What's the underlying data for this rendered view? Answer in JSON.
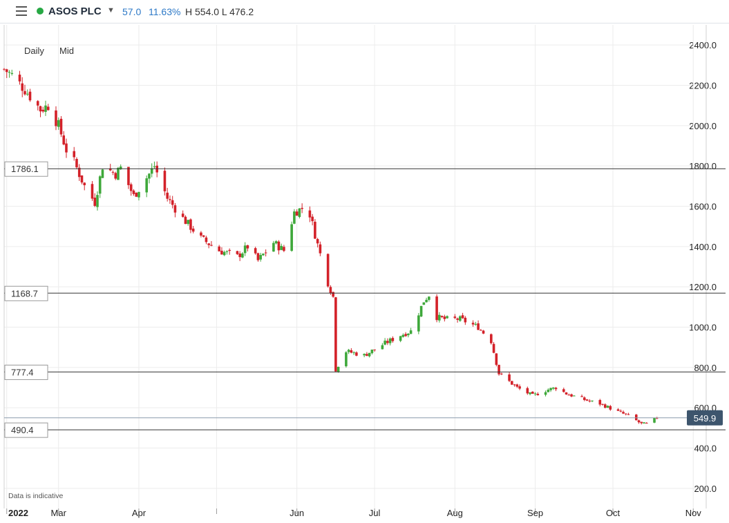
{
  "header": {
    "menu_icon": "hamburger-menu-icon",
    "instrument": "ASOS PLC",
    "change": "57.0",
    "change_pct": "11.63%",
    "high_low": "H 554.0 L 476.2",
    "live_color": "#27a844",
    "change_color": "#2d79c7"
  },
  "toolbar": {
    "period": "Daily",
    "price_type": "Mid"
  },
  "disclaimer": "Data is indicative",
  "colors": {
    "up": "#3ea83a",
    "down": "#d32129",
    "grid": "#ececec",
    "line": "#333333",
    "price_tag": "#3d556d"
  },
  "chart_data": {
    "type": "candlestick",
    "ylim": [
      100,
      2500
    ],
    "y_ticks": [
      200,
      400,
      600,
      800,
      1000,
      1200,
      1400,
      1600,
      1800,
      2000,
      2200,
      2400
    ],
    "y_tick_labels": [
      "200.0",
      "400.0",
      "600.0",
      "800.0",
      "1000.0",
      "1200.0",
      "1400.0",
      "1600.0",
      "1800.0",
      "2000.0",
      "2200.0",
      "2400.0"
    ],
    "x_range": [
      "2022-02-08",
      "2022-11-06"
    ],
    "x_ticks": [
      {
        "date": "2022-02-09",
        "label": "2022"
      },
      {
        "date": "2022-03-01",
        "label": "Mar"
      },
      {
        "date": "2022-04-01",
        "label": "Apr"
      },
      {
        "date": "2022-05-01",
        "label": ""
      },
      {
        "date": "2022-06-01",
        "label": "Jun"
      },
      {
        "date": "2022-07-01",
        "label": "Jul"
      },
      {
        "date": "2022-08-01",
        "label": "Aug"
      },
      {
        "date": "2022-09-01",
        "label": "Sep"
      },
      {
        "date": "2022-10-01",
        "label": "Oct"
      },
      {
        "date": "2022-11-01",
        "label": "Nov"
      }
    ],
    "horizontal_levels": [
      {
        "value": 1786.1,
        "label": "1786.1"
      },
      {
        "value": 1168.7,
        "label": "1168.7"
      },
      {
        "value": 777.4,
        "label": "777.4"
      },
      {
        "value": 490.4,
        "label": "490.4"
      }
    ],
    "last_price": {
      "value": 549.9,
      "label": "549.9"
    },
    "anchors": [
      [
        "2022-02-08",
        2280
      ],
      [
        "2022-02-11",
        2250
      ],
      [
        "2022-02-16",
        2180
      ],
      [
        "2022-02-22",
        2080
      ],
      [
        "2022-02-25",
        2100
      ],
      [
        "2022-03-01",
        2000
      ],
      [
        "2022-03-04",
        1880
      ],
      [
        "2022-03-07",
        1820
      ],
      [
        "2022-03-11",
        1700
      ],
      [
        "2022-03-15",
        1620
      ],
      [
        "2022-03-18",
        1800
      ],
      [
        "2022-03-23",
        1760
      ],
      [
        "2022-03-25",
        1790
      ],
      [
        "2022-03-30",
        1650
      ],
      [
        "2022-04-05",
        1760
      ],
      [
        "2022-04-07",
        1800
      ],
      [
        "2022-04-12",
        1640
      ],
      [
        "2022-04-18",
        1540
      ],
      [
        "2022-04-25",
        1440
      ],
      [
        "2022-05-02",
        1380
      ],
      [
        "2022-05-09",
        1350
      ],
      [
        "2022-05-13",
        1400
      ],
      [
        "2022-05-17",
        1330
      ],
      [
        "2022-05-23",
        1420
      ],
      [
        "2022-05-27",
        1380
      ],
      [
        "2022-05-31",
        1570
      ],
      [
        "2022-06-03",
        1590
      ],
      [
        "2022-06-06",
        1560
      ],
      [
        "2022-06-09",
        1410
      ],
      [
        "2022-06-13",
        1220
      ],
      [
        "2022-06-15",
        1150
      ],
      [
        "2022-06-16",
        790
      ],
      [
        "2022-06-20",
        880
      ],
      [
        "2022-06-27",
        860
      ],
      [
        "2022-07-05",
        920
      ],
      [
        "2022-07-11",
        960
      ],
      [
        "2022-07-15",
        980
      ],
      [
        "2022-07-20",
        1130
      ],
      [
        "2022-07-22",
        1160
      ],
      [
        "2022-07-25",
        1050
      ],
      [
        "2022-07-28",
        1040
      ],
      [
        "2022-08-03",
        1040
      ],
      [
        "2022-08-10",
        1000
      ],
      [
        "2022-08-15",
        930
      ],
      [
        "2022-08-18",
        770
      ],
      [
        "2022-08-25",
        700
      ],
      [
        "2022-08-31",
        660
      ],
      [
        "2022-09-06",
        690
      ],
      [
        "2022-09-09",
        700
      ],
      [
        "2022-09-13",
        670
      ],
      [
        "2022-09-20",
        640
      ],
      [
        "2022-09-26",
        620
      ],
      [
        "2022-10-03",
        580
      ],
      [
        "2022-10-07",
        560
      ],
      [
        "2022-10-12",
        520
      ],
      [
        "2022-10-14",
        520
      ],
      [
        "2022-10-18",
        550
      ]
    ]
  }
}
